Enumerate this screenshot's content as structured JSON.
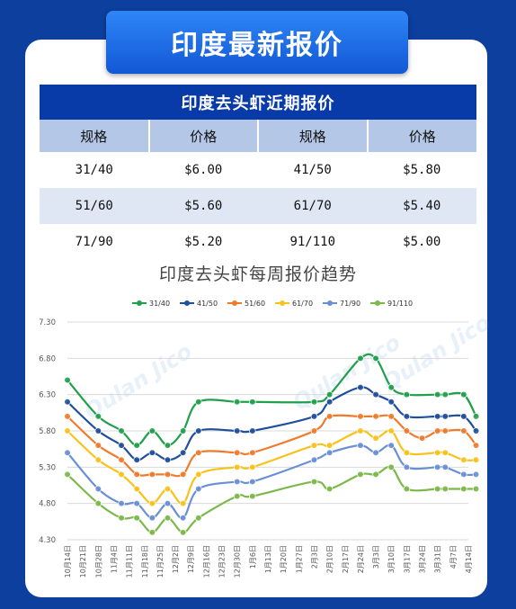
{
  "banner": {
    "title": "印度最新报价"
  },
  "table": {
    "title": "印度去头虾近期报价",
    "headers": [
      "规格",
      "价格",
      "规格",
      "价格"
    ],
    "rows": [
      [
        "31/40",
        "$6.00",
        "41/50",
        "$5.80"
      ],
      [
        "51/60",
        "$5.60",
        "61/70",
        "$5.40"
      ],
      [
        "71/90",
        "$5.20",
        "91/110",
        "$5.00"
      ]
    ]
  },
  "watermark": [
    "Qulan Jico",
    "Qulan Jico",
    "Qulan Jico"
  ],
  "chart_data": {
    "type": "line",
    "title": "印度去头虾每周报价趋势",
    "xlabel": "",
    "ylabel": "",
    "ylim": [
      4.3,
      7.3
    ],
    "yticks": [
      "4.30",
      "4.80",
      "5.30",
      "5.80",
      "6.30",
      "6.80",
      "7.30"
    ],
    "grid": "horizontal",
    "legend_position": "top",
    "categories": [
      "10月14日",
      "10月21日",
      "10月28日",
      "11月4日",
      "11月11日",
      "11月18日",
      "11月25日",
      "12月2日",
      "12月9日",
      "12月16日",
      "12月23日",
      "12月30日",
      "1月6日",
      "1月13日",
      "1月20日",
      "1月27日",
      "2月3日",
      "2月10日",
      "2月17日",
      "2月24日",
      "3月3日",
      "3月10日",
      "3月17日",
      "3月24日",
      "3月31日",
      "4月7日",
      "4月14日"
    ],
    "series": [
      {
        "name": "31/40",
        "color": "#20a04b",
        "points": [
          [
            0,
            6.5
          ],
          [
            2,
            6.0
          ],
          [
            3.5,
            5.8
          ],
          [
            4.5,
            5.6
          ],
          [
            5.5,
            5.8
          ],
          [
            6.5,
            5.6
          ],
          [
            7.5,
            5.8
          ],
          [
            8.5,
            6.2
          ],
          [
            11,
            6.2
          ],
          [
            12,
            6.2
          ],
          [
            16,
            6.2
          ],
          [
            17,
            6.3
          ],
          [
            19,
            6.8
          ],
          [
            20,
            6.8
          ],
          [
            21,
            6.4
          ],
          [
            22,
            6.3
          ],
          [
            24,
            6.3
          ],
          [
            24.5,
            6.3
          ],
          [
            25.7,
            6.3
          ],
          [
            26.5,
            6.0
          ]
        ]
      },
      {
        "name": "41/50",
        "color": "#1f4e9c",
        "points": [
          [
            0,
            6.2
          ],
          [
            2,
            5.8
          ],
          [
            3.5,
            5.6
          ],
          [
            4.5,
            5.4
          ],
          [
            5.5,
            5.5
          ],
          [
            6.5,
            5.4
          ],
          [
            7.5,
            5.5
          ],
          [
            8.5,
            5.8
          ],
          [
            11,
            5.8
          ],
          [
            12,
            5.8
          ],
          [
            16,
            6.0
          ],
          [
            17,
            6.2
          ],
          [
            19,
            6.4
          ],
          [
            20,
            6.3
          ],
          [
            21,
            6.2
          ],
          [
            22,
            6.0
          ],
          [
            24,
            6.0
          ],
          [
            24.5,
            6.0
          ],
          [
            25.7,
            6.0
          ],
          [
            26.5,
            5.8
          ]
        ]
      },
      {
        "name": "51/60",
        "color": "#f07a2a",
        "points": [
          [
            0,
            6.0
          ],
          [
            2,
            5.6
          ],
          [
            3.5,
            5.4
          ],
          [
            4.5,
            5.2
          ],
          [
            5.5,
            5.2
          ],
          [
            6.5,
            5.2
          ],
          [
            7.5,
            5.2
          ],
          [
            8.5,
            5.5
          ],
          [
            11,
            5.5
          ],
          [
            12,
            5.5
          ],
          [
            16,
            5.8
          ],
          [
            17,
            6.0
          ],
          [
            19,
            6.0
          ],
          [
            20,
            6.0
          ],
          [
            21,
            6.0
          ],
          [
            22,
            5.8
          ],
          [
            23,
            5.7
          ],
          [
            24,
            5.8
          ],
          [
            24.5,
            5.8
          ],
          [
            25.7,
            5.8
          ],
          [
            26.5,
            5.6
          ]
        ]
      },
      {
        "name": "61/70",
        "color": "#f8c21a",
        "points": [
          [
            0,
            5.8
          ],
          [
            2,
            5.4
          ],
          [
            3.5,
            5.2
          ],
          [
            4.5,
            5.0
          ],
          [
            5.5,
            4.8
          ],
          [
            6.5,
            5.0
          ],
          [
            7.5,
            4.8
          ],
          [
            8.5,
            5.2
          ],
          [
            11,
            5.3
          ],
          [
            12,
            5.3
          ],
          [
            16,
            5.6
          ],
          [
            17,
            5.6
          ],
          [
            19,
            5.8
          ],
          [
            20,
            5.7
          ],
          [
            21,
            5.8
          ],
          [
            22,
            5.5
          ],
          [
            24,
            5.5
          ],
          [
            24.5,
            5.5
          ],
          [
            25.7,
            5.4
          ],
          [
            26.5,
            5.4
          ]
        ]
      },
      {
        "name": "71/90",
        "color": "#6a8fd6",
        "points": [
          [
            0,
            5.5
          ],
          [
            2,
            5.0
          ],
          [
            3.5,
            4.8
          ],
          [
            4.5,
            4.8
          ],
          [
            5.5,
            4.6
          ],
          [
            6.5,
            4.8
          ],
          [
            7.5,
            4.6
          ],
          [
            8.5,
            5.0
          ],
          [
            11,
            5.1
          ],
          [
            12,
            5.1
          ],
          [
            16,
            5.4
          ],
          [
            17,
            5.5
          ],
          [
            19,
            5.6
          ],
          [
            20,
            5.5
          ],
          [
            21,
            5.6
          ],
          [
            22,
            5.3
          ],
          [
            24,
            5.3
          ],
          [
            24.5,
            5.3
          ],
          [
            25.7,
            5.2
          ],
          [
            26.5,
            5.2
          ]
        ]
      },
      {
        "name": "91/110",
        "color": "#7cb84a",
        "points": [
          [
            0,
            5.2
          ],
          [
            2,
            4.8
          ],
          [
            3.5,
            4.6
          ],
          [
            4.5,
            4.6
          ],
          [
            5.5,
            4.4
          ],
          [
            6.5,
            4.6
          ],
          [
            7.5,
            4.4
          ],
          [
            8.5,
            4.6
          ],
          [
            11,
            4.9
          ],
          [
            12,
            4.9
          ],
          [
            16,
            5.1
          ],
          [
            17,
            5.0
          ],
          [
            19,
            5.2
          ],
          [
            20,
            5.2
          ],
          [
            21,
            5.3
          ],
          [
            22,
            5.0
          ],
          [
            24,
            5.0
          ],
          [
            24.5,
            5.0
          ],
          [
            25.7,
            5.0
          ],
          [
            26.5,
            5.0
          ]
        ]
      }
    ]
  }
}
